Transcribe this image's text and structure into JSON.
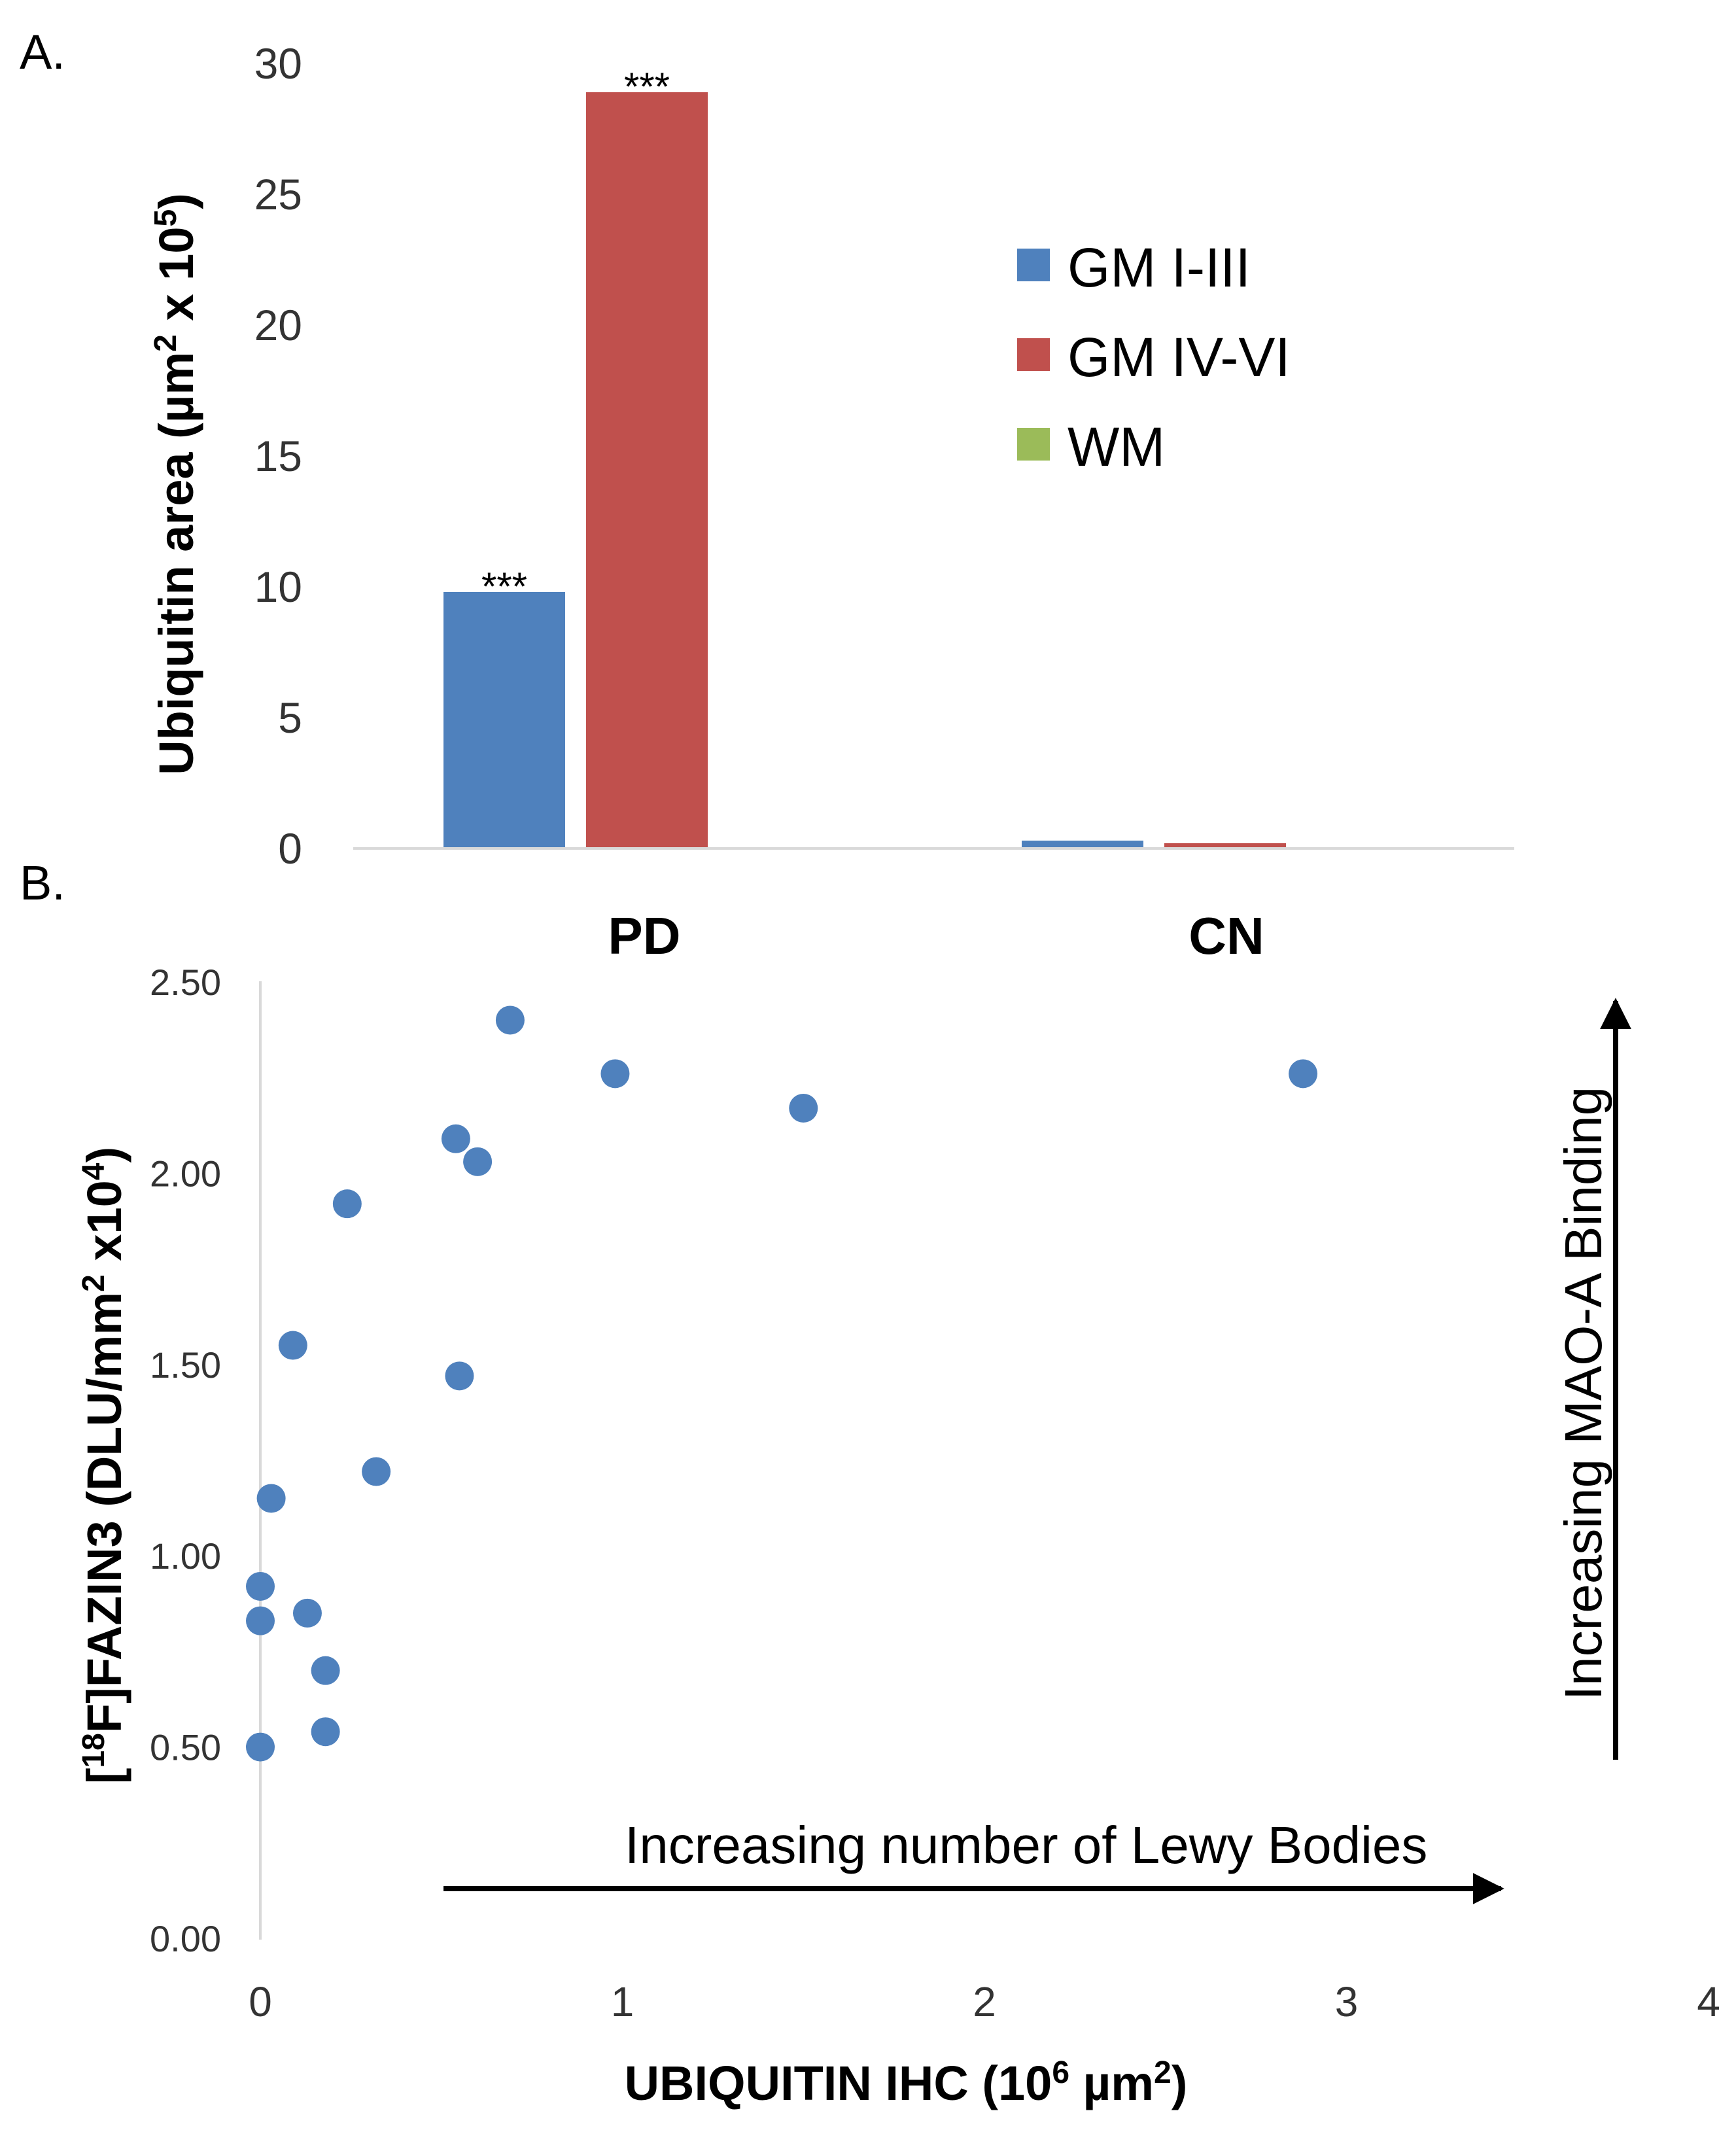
{
  "chart_data": [
    {
      "panel": "A.",
      "type": "bar",
      "categories": [
        "PD",
        "CN"
      ],
      "series": [
        {
          "name": "GM I-III",
          "color": "#4f81bd",
          "values": [
            9.8,
            0.3
          ]
        },
        {
          "name": "GM IV-VI",
          "color": "#c0504d",
          "values": [
            28.9,
            0.2
          ]
        },
        {
          "name": "WM",
          "color": "#9bbb59",
          "values": [
            0,
            0
          ]
        }
      ],
      "significance": [
        {
          "series": 0,
          "category": 0,
          "label": "***"
        },
        {
          "series": 1,
          "category": 0,
          "label": "***"
        }
      ],
      "ylabel": "Ubiquitin area (µm² x 10⁵)",
      "ylabel_parts": {
        "pre": "Ubiquitin area (µm",
        "sup1": "2",
        "mid": " x 10",
        "sup2": "5",
        "post": ")"
      },
      "ylim": [
        0,
        30
      ],
      "yticks": [
        "0",
        "5",
        "10",
        "15",
        "20",
        "25",
        "30"
      ],
      "legend_position": "right"
    },
    {
      "panel": "B.",
      "type": "scatter",
      "color": "#4f81bd",
      "points": [
        {
          "x": 0.0,
          "y": 0.92
        },
        {
          "x": 0.0,
          "y": 0.83
        },
        {
          "x": 0.0,
          "y": 0.5
        },
        {
          "x": 0.03,
          "y": 1.15
        },
        {
          "x": 0.09,
          "y": 1.55
        },
        {
          "x": 0.13,
          "y": 0.85
        },
        {
          "x": 0.18,
          "y": 0.7
        },
        {
          "x": 0.18,
          "y": 0.54
        },
        {
          "x": 0.24,
          "y": 1.92
        },
        {
          "x": 0.32,
          "y": 1.22
        },
        {
          "x": 0.54,
          "y": 2.09
        },
        {
          "x": 0.55,
          "y": 1.47
        },
        {
          "x": 0.6,
          "y": 2.03
        },
        {
          "x": 0.69,
          "y": 2.4
        },
        {
          "x": 0.98,
          "y": 2.26
        },
        {
          "x": 1.5,
          "y": 2.17
        },
        {
          "x": 2.88,
          "y": 2.26
        }
      ],
      "xlabel": "UBIQUITIN IHC (10⁶ µm²)",
      "xlabel_parts": {
        "pre": "UBIQUITIN IHC (10",
        "sup1": "6",
        "mid": " µm",
        "sup2": "2",
        "post": ")"
      },
      "ylabel": "[¹⁸F]FAZIN3 (DLU/mm² x10⁴)",
      "ylabel_parts": {
        "pre": "[",
        "sup1": "18",
        "mid": "F]FAZIN3 (DLU/mm",
        "sup2": "2",
        "mid2": " x10",
        "sup3": "4",
        "post": ")"
      },
      "xlim": [
        0,
        4
      ],
      "ylim": [
        0,
        2.5
      ],
      "xticks": [
        "0",
        "1",
        "2",
        "3",
        "4"
      ],
      "yticks": [
        "0.00",
        "0.50",
        "1.00",
        "1.50",
        "2.00",
        "2.50"
      ],
      "annotations": {
        "horizontal_arrow": "Increasing number of Lewy Bodies",
        "vertical_arrow": "Increasing MAO-A Binding"
      }
    }
  ]
}
